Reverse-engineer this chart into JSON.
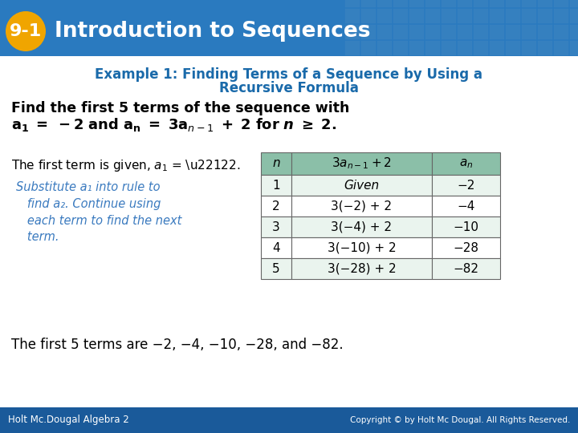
{
  "title_badge": "9-1",
  "title_text": "Introduction to Sequences",
  "header_bg": "#2a7abf",
  "header_text_color": "#ffffff",
  "badge_bg": "#f0a500",
  "badge_text_color": "#ffffff",
  "slide_bg": "#ffffff",
  "example_title_line1": "Example 1: Finding Terms of a Sequence by Using a",
  "example_title_line2": "Recursive Formula",
  "example_title_color": "#1a6aaa",
  "body_bold_line1": "Find the first 5 terms of the sequence with",
  "italic_text_color": "#3a7abf",
  "italic_lines": [
    "Substitute a₁ into rule to",
    "   find a₂. Continue using",
    "   each term to find the next",
    "   term."
  ],
  "table_header_bg": "#8bbfa8",
  "table_rows": [
    [
      "1",
      "Given",
      "−2"
    ],
    [
      "2",
      "3(−2) + 2",
      "−4"
    ],
    [
      "3",
      "3(−4) + 2",
      "−10"
    ],
    [
      "4",
      "3(−10) + 2",
      "−28"
    ],
    [
      "5",
      "3(−28) + 2",
      "−82"
    ]
  ],
  "conclusion": "The first 5 terms are −2, −4, −10, −28, and −82.",
  "footer_left": "Holt Mc.Dougal Algebra 2",
  "footer_right": "Copyright © by Holt Mc Dougal. All Rights Reserved.",
  "footer_bg": "#1a5a9a",
  "footer_text_color": "#ffffff"
}
